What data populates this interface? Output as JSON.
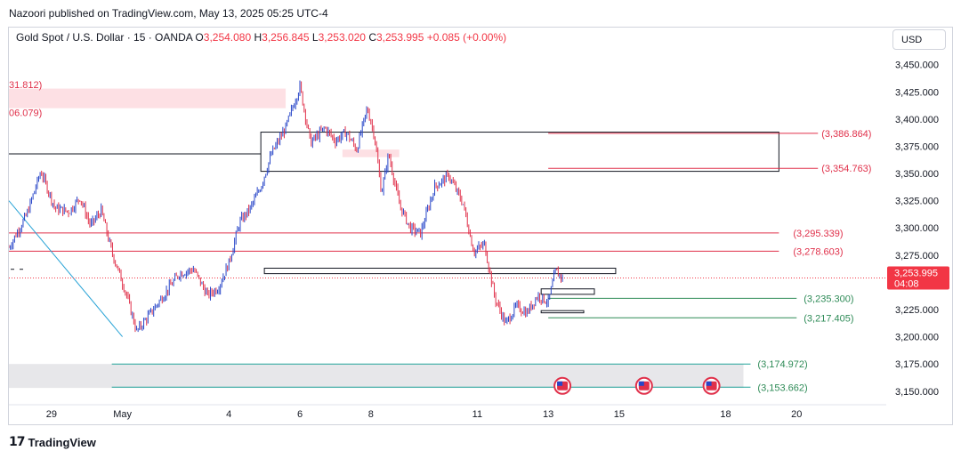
{
  "header": {
    "text": "Nazoori published on TradingView.com, May 13, 2025 05:25 UTC-4"
  },
  "legend": {
    "symbol": "Gold Spot / U.S. Dollar · 15 · OANDA",
    "o_key": "O",
    "o_val": "3,254.080",
    "h_key": "H",
    "h_val": "3,256.845",
    "l_key": "L",
    "l_val": "3,253.020",
    "c_key": "C",
    "c_val": "3,253.995",
    "change": "+0.085 (+0.00%)"
  },
  "currency_button": "USD",
  "footer": {
    "brand": "TradingView",
    "logo": "17"
  },
  "colors": {
    "up_candle": "#2846c8",
    "down_candle": "#e0304a",
    "resistance": "#e0304a",
    "support": "#2e8b57",
    "trend_line": "#29a3d6",
    "zone_fill": "#fde0e4",
    "gray_zone": "#e7e7ea",
    "price_tag": "#f23645",
    "teal_line": "#22a39a"
  },
  "chart_data": {
    "type": "candlestick",
    "symbol": "Gold Spot / U.S. Dollar",
    "interval": "15",
    "broker": "OANDA",
    "ohlc": {
      "open": 3254.08,
      "high": 3256.845,
      "low": 3253.02,
      "close": 3253.995
    },
    "change": "+0.085 (+0.00%)",
    "current_price": {
      "value": 3253.995,
      "label": "3,253.995",
      "countdown": "04:08"
    },
    "y_axis": {
      "range": [
        3140,
        3462
      ],
      "ticks": [
        "3,450.000",
        "3,425.000",
        "3,400.000",
        "3,375.000",
        "3,350.000",
        "3,325.000",
        "3,300.000",
        "3,275.000",
        "3,250.000",
        "3,225.000",
        "3,200.000",
        "3,175.000",
        "3,150.000"
      ],
      "tick_values": [
        3450,
        3425,
        3400,
        3375,
        3350,
        3325,
        3300,
        3275,
        3250,
        3225,
        3200,
        3175,
        3150
      ]
    },
    "x_axis": {
      "ticks": [
        "29",
        "May",
        "4",
        "6",
        "8",
        "11",
        "13",
        "15",
        "18",
        "20"
      ],
      "tick_days": [
        -2,
        0,
        3,
        5,
        7,
        10,
        12,
        14,
        17,
        19
      ],
      "range_days": [
        -3.2,
        21.5
      ]
    },
    "price_path_days": [
      -3.2,
      -2.7,
      -2.3,
      -1.9,
      -1.5,
      -1.2,
      -0.9,
      -0.6,
      -0.3,
      0.1,
      0.4,
      0.8,
      1.2,
      1.6,
      2.0,
      2.4,
      2.7,
      3.0,
      3.3,
      3.6,
      3.9,
      4.2,
      4.6,
      5.0,
      5.3,
      5.7,
      6.0,
      6.3,
      6.6,
      6.9,
      7.1,
      7.3,
      7.5,
      7.8,
      8.1,
      8.4,
      8.8,
      9.2,
      9.6,
      9.9,
      10.2,
      10.5,
      10.8,
      11.1,
      11.4,
      11.7,
      12.0,
      12.2,
      12.4
    ],
    "price_path_values": [
      3282,
      3312,
      3352,
      3318,
      3315,
      3328,
      3302,
      3316,
      3278,
      3240,
      3205,
      3222,
      3240,
      3258,
      3262,
      3238,
      3245,
      3268,
      3305,
      3318,
      3338,
      3368,
      3392,
      3430,
      3378,
      3392,
      3380,
      3388,
      3372,
      3410,
      3385,
      3332,
      3368,
      3322,
      3300,
      3295,
      3338,
      3348,
      3322,
      3278,
      3285,
      3235,
      3212,
      3228,
      3222,
      3238,
      3232,
      3260,
      3254
    ],
    "resistance_levels": [
      {
        "value": 3386.864,
        "label": "(3,386.864)"
      },
      {
        "value": 3354.763,
        "label": "(3,354.763)"
      },
      {
        "value": 3295.339,
        "label": "(3,295.339)"
      },
      {
        "value": 3278.603,
        "label": "(3,278.603)"
      }
    ],
    "support_levels": [
      {
        "value": 3235.3,
        "label": "(3,235.300)"
      },
      {
        "value": 3217.405,
        "label": "(3,217.405)"
      },
      {
        "value": 3174.972,
        "label": "(3,174.972)"
      },
      {
        "value": 3153.662,
        "label": "(3,153.662)"
      }
    ],
    "left_cut_labels": [
      {
        "value": 3431.812,
        "label": "31.812)"
      },
      {
        "value": 3406.079,
        "label": "06.079)"
      }
    ],
    "zones": [
      {
        "name": "supply-zone-top",
        "days": [
          -3.2,
          4.6
        ],
        "prices": [
          3410,
          3428
        ],
        "kind": "pink"
      },
      {
        "name": "supply-zone-small",
        "days": [
          6.2,
          7.8
        ],
        "prices": [
          3365,
          3372
        ],
        "kind": "pink"
      },
      {
        "name": "rectangle-box-upper",
        "days": [
          3.9,
          18.5
        ],
        "prices": [
          3352,
          3388
        ],
        "kind": "box"
      },
      {
        "name": "rectangle-box-mid",
        "days": [
          4.0,
          13.9
        ],
        "prices": [
          3258,
          3263
        ],
        "kind": "box"
      },
      {
        "name": "rectangle-box-small-1",
        "days": [
          11.8,
          13.3
        ],
        "prices": [
          3239,
          3244
        ],
        "kind": "box"
      },
      {
        "name": "rectangle-box-small-2",
        "days": [
          11.8,
          13.0
        ],
        "prices": [
          3222,
          3224
        ],
        "kind": "box"
      },
      {
        "name": "demand-zone-gray",
        "days": [
          -3.2,
          17.5
        ],
        "prices": [
          3153,
          3175
        ],
        "kind": "gray"
      }
    ],
    "event_markers_days": [
      12.4,
      14.7,
      16.6
    ],
    "event_marker_price": 3150,
    "trend_line": {
      "from_day": -3.2,
      "from_price": 3325,
      "to_day": 0.0,
      "to_price": 3200
    }
  }
}
